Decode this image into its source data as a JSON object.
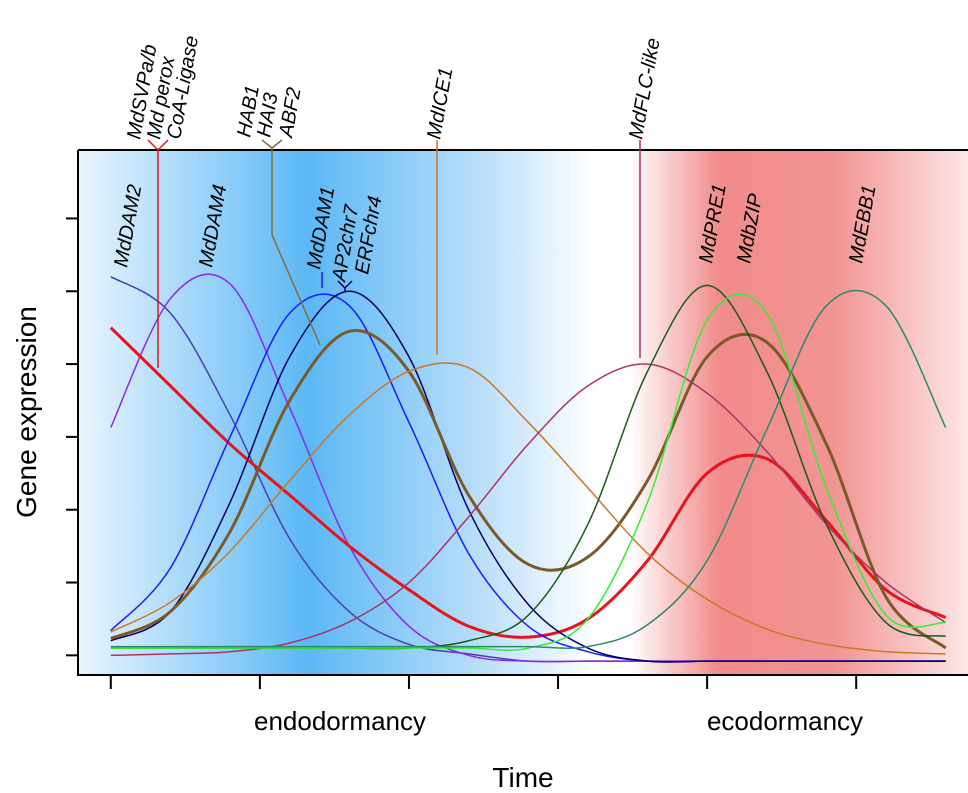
{
  "chart_data": {
    "type": "line",
    "x_label": "Time",
    "y_label": "Gene expression",
    "regions": [
      "endodormancy",
      "ecodormancy"
    ],
    "annotations": [
      "MdSVPa/b",
      "Md perox",
      "CoA-Ligase",
      "HAB1",
      "HAI3",
      "ABF2",
      "MdICE1",
      "MdFLC-like",
      "MdDAM2",
      "MdDAM4",
      "MdDAM1",
      "AP2chr7",
      "ERFchr4",
      "MdPRE1",
      "MdbZIP",
      "MdEBB1"
    ],
    "xlim": [
      -0.22,
      5.75
    ],
    "ylim": [
      -0.27,
      6.94
    ],
    "xticks": [
      0,
      1,
      2,
      3,
      4,
      5
    ],
    "yticks": [
      0,
      1,
      2,
      3,
      4,
      5,
      6
    ],
    "x": [
      0,
      0.4,
      0.8,
      1.2,
      1.6,
      2.0,
      2.4,
      2.8,
      3.2,
      3.6,
      4.0,
      4.4,
      4.8,
      5.2,
      5.6
    ],
    "series": [
      {
        "color": "#4b3fb0",
        "width": 1.5,
        "values": [
          5.2,
          4.7,
          3.3,
          1.6,
          0.6,
          0.15,
          0.02,
          -0.08,
          -0.08,
          -0.08,
          -0.08,
          -0.08,
          -0.08,
          -0.08,
          -0.08
        ]
      },
      {
        "color": "#8a2be2",
        "width": 1.5,
        "values": [
          3.13,
          4.9,
          5.1,
          3.4,
          1.5,
          0.4,
          0,
          -0.08,
          -0.08,
          -0.08,
          -0.08,
          -0.08,
          -0.08,
          -0.08,
          -0.08
        ]
      },
      {
        "color": "#e8141c",
        "width": 3,
        "values": [
          4.5,
          3.7,
          2.9,
          2.2,
          1.5,
          0.9,
          0.4,
          0.25,
          0.5,
          1.3,
          2.5,
          2.7,
          1.85,
          0.9,
          0.52
        ]
      },
      {
        "color": "#1a1aff",
        "width": 1.5,
        "values": [
          0.34,
          1.2,
          3.0,
          4.7,
          4.8,
          3.2,
          1.4,
          0.4,
          0.05,
          -0.08,
          -0.08,
          -0.08,
          -0.08,
          -0.08,
          -0.08
        ]
      },
      {
        "color": "#000066",
        "width": 1.5,
        "values": [
          0.2,
          0.6,
          2.1,
          4.1,
          5.0,
          4.1,
          2.0,
          0.7,
          0.1,
          -0.08,
          -0.08,
          -0.08,
          -0.08,
          -0.08,
          -0.08
        ]
      },
      {
        "color": "#7a5a2a",
        "width": 3,
        "values": [
          0.23,
          0.6,
          1.7,
          3.5,
          4.45,
          3.9,
          2.2,
          1.25,
          1.35,
          2.4,
          4.1,
          4.3,
          2.9,
          0.8,
          0.1
        ]
      },
      {
        "color": "#cc7722",
        "width": 1.5,
        "values": [
          0.32,
          0.73,
          1.43,
          2.4,
          3.3,
          3.9,
          3.95,
          3.2,
          2.3,
          1.4,
          0.77,
          0.36,
          0.15,
          0.05,
          0.02
        ]
      },
      {
        "color": "#aa3366",
        "width": 1.5,
        "values": [
          0,
          0.02,
          0.05,
          0.17,
          0.46,
          1.0,
          1.9,
          2.9,
          3.7,
          4.0,
          3.6,
          2.8,
          1.8,
          1.0,
          0.45
        ]
      },
      {
        "color": "#1a5a1a",
        "width": 1.5,
        "values": [
          0.1,
          0.1,
          0.1,
          0.1,
          0.1,
          0.1,
          0.2,
          0.55,
          1.8,
          3.9,
          5.08,
          3.9,
          1.8,
          0.45,
          0.26
        ]
      },
      {
        "color": "#33ee33",
        "width": 1.5,
        "values": [
          0.1,
          0.1,
          0.1,
          0.1,
          0.1,
          0.1,
          0.1,
          0.1,
          0.5,
          2.1,
          4.6,
          4.7,
          2.3,
          0.55,
          0.45
        ]
      },
      {
        "color": "#2a8a6a",
        "width": 1.5,
        "values": [
          0.12,
          0.12,
          0.12,
          0.12,
          0.12,
          0.12,
          0.12,
          0.12,
          0.12,
          0.42,
          1.3,
          3.1,
          4.8,
          4.8,
          3.13
        ]
      }
    ]
  }
}
